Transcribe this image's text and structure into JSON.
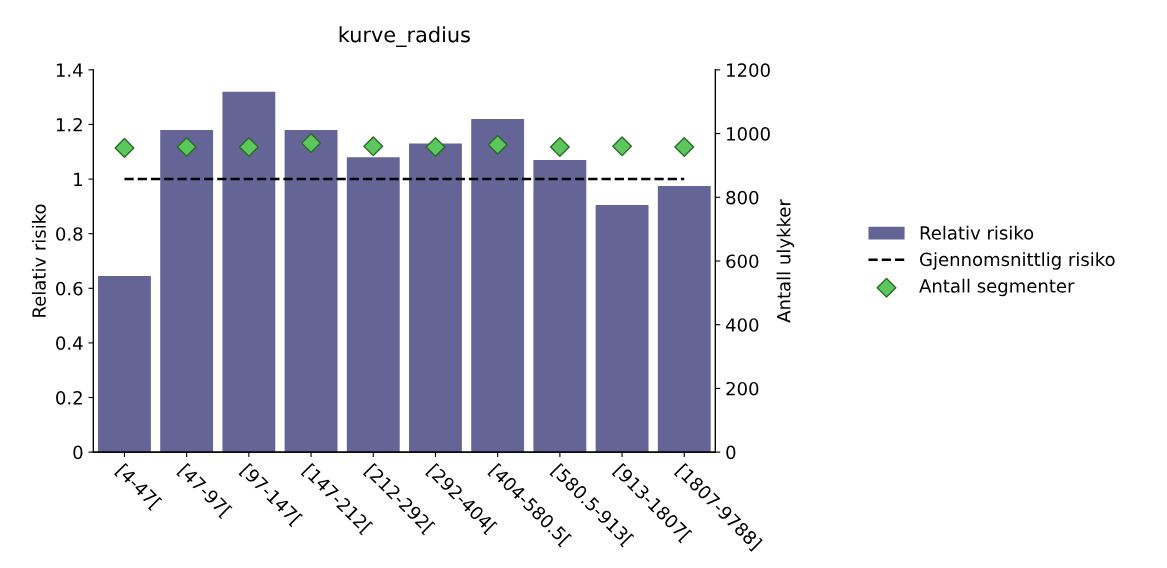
{
  "chart_data": {
    "type": "bar",
    "title": "kurve_radius",
    "ylabel": "Relativ risiko",
    "y2label": "Antall ulykker",
    "categories": [
      "[4-47[",
      "[47-97[",
      "[97-147[",
      "[147-212[",
      "[212-292[",
      "[292-404[",
      "[404-580.5[",
      "[580.5-913[",
      "[913-1807[",
      "[1807-9788]"
    ],
    "series": [
      {
        "name": "Relativ risiko",
        "color": "#646496",
        "values": [
          0.645,
          1.18,
          1.32,
          1.18,
          1.08,
          1.13,
          1.22,
          1.07,
          0.905,
          0.975
        ]
      },
      {
        "name": "Gjennomsnittlig risiko",
        "type": "line",
        "line_style": "dashed",
        "marker": "none",
        "color": "#000000",
        "values": [
          1,
          1,
          1,
          1,
          1,
          1,
          1,
          1,
          1,
          1
        ]
      },
      {
        "name": "Antall segmenter",
        "type": "scatter",
        "axis": "y2",
        "marker": "diamond",
        "color": "#5cc85c",
        "values": [
          955,
          958,
          958,
          970,
          960,
          958,
          965,
          958,
          960,
          958
        ]
      }
    ],
    "ylim": [
      0,
      1.4
    ],
    "yticks": [
      0,
      0.2,
      0.4,
      0.6,
      0.8,
      1,
      1.2,
      1.4
    ],
    "y2lim": [
      0,
      1200
    ],
    "y2ticks": [
      0,
      200,
      400,
      600,
      800,
      1000,
      1200
    ],
    "grid": false,
    "legend": "right"
  }
}
